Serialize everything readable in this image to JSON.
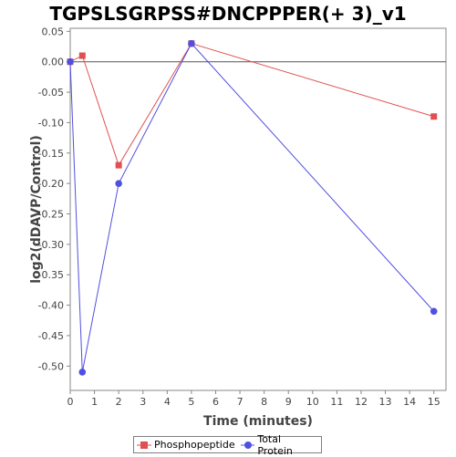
{
  "chart_data": {
    "type": "line",
    "title": "TGPSLSGRPSS#DNCPPPER(+ 3)_v1",
    "xlabel": "Time (minutes)",
    "ylabel": "log2(dDAVP/Control)",
    "xlim": [
      0,
      15.5
    ],
    "ylim": [
      -0.54,
      0.055
    ],
    "xticks": [
      0,
      1,
      2,
      3,
      4,
      5,
      6,
      7,
      8,
      9,
      10,
      11,
      12,
      13,
      14,
      15
    ],
    "yticks": [
      0.05,
      0.0,
      -0.05,
      -0.1,
      -0.15,
      -0.2,
      -0.25,
      -0.3,
      -0.35,
      -0.4,
      -0.45,
      -0.5
    ],
    "ytick_labels": [
      "0.05",
      "0.00",
      "-0.05",
      "-0.10",
      "-0.15",
      "-0.20",
      "-0.25",
      "-0.30",
      "-0.35",
      "-0.40",
      "-0.45",
      "-0.50"
    ],
    "zero_line": true,
    "grid": false,
    "legend_position": "bottom-center",
    "series": [
      {
        "name": "Phosphopeptide",
        "color": "#e05050",
        "marker": "square",
        "x": [
          0,
          0.5,
          2,
          5,
          15
        ],
        "values": [
          0.0,
          0.01,
          -0.17,
          0.03,
          -0.09
        ]
      },
      {
        "name": "Total Protein",
        "color": "#5050e0",
        "marker": "circle",
        "x": [
          0,
          0.5,
          2,
          5,
          15
        ],
        "values": [
          0.0,
          -0.51,
          -0.2,
          0.03,
          -0.41
        ]
      }
    ]
  }
}
